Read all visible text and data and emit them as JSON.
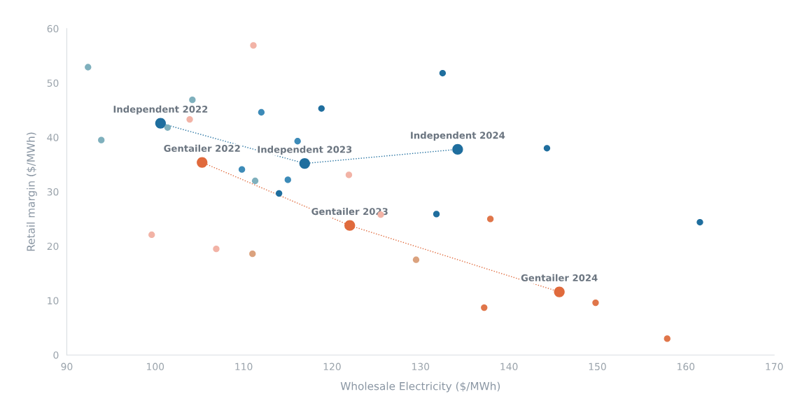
{
  "chart_data": {
    "type": "scatter",
    "xlabel": "Wholesale Electricity ($/MWh)",
    "ylabel": "Retail margin ($/MWh)",
    "xlim": [
      90,
      170
    ],
    "xticks": [
      90,
      100,
      110,
      120,
      130,
      140,
      150,
      160,
      170
    ],
    "ylim": [
      0,
      60
    ],
    "yticks": [
      0,
      10,
      20,
      30,
      40,
      50,
      60
    ],
    "grid": false,
    "marker": "circle",
    "series": [
      {
        "color": "#7fb0bd",
        "x": [
          92.4,
          104.2,
          101.4,
          93.9,
          111.3
        ],
        "values": [
          52.9,
          46.9,
          41.8,
          39.5,
          32.0
        ]
      },
      {
        "color": "#3d8bb8",
        "x": [
          112.0,
          116.1,
          109.8,
          115.0
        ],
        "values": [
          44.6,
          39.3,
          34.1,
          32.2
        ]
      },
      {
        "color": "#1f6e9e",
        "x": [
          118.8,
          114.0,
          132.5,
          144.3,
          131.8,
          161.6
        ],
        "values": [
          45.3,
          29.7,
          51.8,
          38.0,
          25.9,
          24.4
        ]
      },
      {
        "color": "#f2b3a6",
        "x": [
          111.1,
          103.9,
          121.9,
          99.6,
          106.9,
          125.5
        ],
        "values": [
          56.9,
          43.3,
          33.1,
          22.1,
          19.5,
          25.8
        ]
      },
      {
        "color": "#dba27e",
        "x": [
          111.0,
          129.5
        ],
        "values": [
          18.6,
          17.5
        ]
      },
      {
        "color": "#e0764a",
        "x": [
          137.9,
          137.2,
          149.8,
          157.9
        ],
        "values": [
          25.0,
          8.7,
          9.6,
          3.0
        ]
      },
      {
        "type": "line",
        "line_style": "dotted",
        "color": "#1f6e9e",
        "x": [
          100.6,
          116.9,
          134.2
        ],
        "values": [
          42.6,
          35.2,
          37.8
        ]
      },
      {
        "type": "line",
        "line_style": "dotted",
        "color": "#e06a3c",
        "x": [
          105.3,
          122.0,
          145.7
        ],
        "values": [
          35.4,
          23.8,
          11.6
        ]
      }
    ],
    "annotations": [
      {
        "text": "Independent 2022",
        "x": 100.6,
        "y": 42.6
      },
      {
        "text": "Independent 2023",
        "x": 116.9,
        "y": 35.2
      },
      {
        "text": "Independent 2024",
        "x": 134.2,
        "y": 37.8
      },
      {
        "text": "Gentailer 2022",
        "x": 105.3,
        "y": 35.4
      },
      {
        "text": "Gentailer 2023",
        "x": 122.0,
        "y": 23.8
      },
      {
        "text": "Gentailer 2024",
        "x": 145.7,
        "y": 11.6
      }
    ]
  }
}
